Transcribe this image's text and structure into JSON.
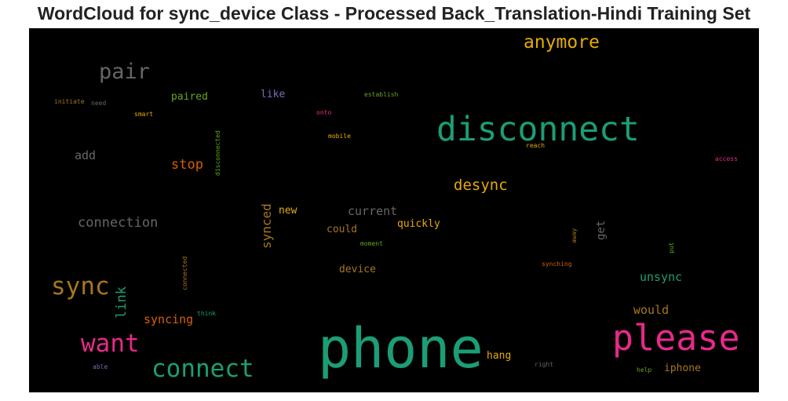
{
  "title": "WordCloud for sync_device Class - Processed Back_Translation-Hindi Training Set",
  "words": [
    {
      "text": "phone",
      "color": "#1b9e77"
    },
    {
      "text": "disconnect",
      "color": "#1b9e77"
    },
    {
      "text": "please",
      "color": "#e7298a"
    },
    {
      "text": "connect",
      "color": "#1b9e77"
    },
    {
      "text": "want",
      "color": "#e7298a"
    },
    {
      "text": "sync",
      "color": "#a6761d"
    },
    {
      "text": "pair",
      "color": "#666666"
    },
    {
      "text": "anymore",
      "color": "#e6ab02"
    },
    {
      "text": "desync",
      "color": "#e6ab02"
    },
    {
      "text": "connection",
      "color": "#666666"
    },
    {
      "text": "stop",
      "color": "#d95f02"
    },
    {
      "text": "add",
      "color": "#666666"
    },
    {
      "text": "paired",
      "color": "#66a61e"
    },
    {
      "text": "like",
      "color": "#7570b3"
    },
    {
      "text": "synced",
      "color": "#a6761d"
    },
    {
      "text": "new",
      "color": "#e6ab02"
    },
    {
      "text": "current",
      "color": "#666666"
    },
    {
      "text": "could",
      "color": "#a6761d"
    },
    {
      "text": "quickly",
      "color": "#e6ab02"
    },
    {
      "text": "get",
      "color": "#666666"
    },
    {
      "text": "unsync",
      "color": "#1b9e77"
    },
    {
      "text": "would",
      "color": "#a6761d"
    },
    {
      "text": "link",
      "color": "#1b9e77"
    },
    {
      "text": "syncing",
      "color": "#d95f02"
    },
    {
      "text": "device",
      "color": "#a6761d"
    },
    {
      "text": "hang",
      "color": "#e6ab02"
    },
    {
      "text": "iphone",
      "color": "#a6761d"
    },
    {
      "text": "initiate",
      "color": "#a6761d"
    },
    {
      "text": "need",
      "color": "#666666"
    },
    {
      "text": "smart",
      "color": "#e6ab02"
    },
    {
      "text": "disconnected",
      "color": "#66a61e"
    },
    {
      "text": "establish",
      "color": "#66a61e"
    },
    {
      "text": "onto",
      "color": "#e7298a"
    },
    {
      "text": "mobile",
      "color": "#e6ab02"
    },
    {
      "text": "reach",
      "color": "#e6ab02"
    },
    {
      "text": "access",
      "color": "#e7298a"
    },
    {
      "text": "moment",
      "color": "#66a61e"
    },
    {
      "text": "away",
      "color": "#a6761d"
    },
    {
      "text": "put",
      "color": "#66a61e"
    },
    {
      "text": "synching",
      "color": "#d95f02"
    },
    {
      "text": "connected",
      "color": "#a6761d"
    },
    {
      "text": "think",
      "color": "#1b9e77"
    },
    {
      "text": "able",
      "color": "#7570b3"
    },
    {
      "text": "right",
      "color": "#666666"
    },
    {
      "text": "help",
      "color": "#66a61e"
    }
  ]
}
